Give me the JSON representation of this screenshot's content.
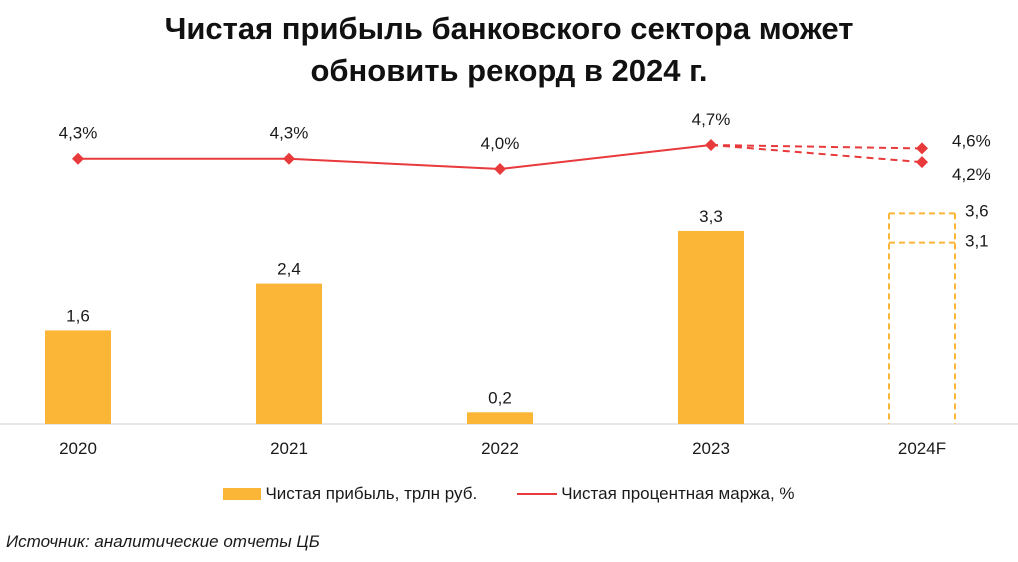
{
  "chart_data": {
    "type": "bar+line",
    "title_line1": "Чистая прибыль банковского сектора может",
    "title_line2": "обновить рекорд в 2024 г.",
    "categories": [
      "2020",
      "2021",
      "2022",
      "2023",
      "2024F"
    ],
    "series": [
      {
        "name": "Чистая прибыль, трлн руб.",
        "type": "bar",
        "values": [
          1.6,
          2.4,
          0.2,
          3.3,
          null
        ],
        "labels": [
          "1,6",
          "2,4",
          "0,2",
          "3,3",
          ""
        ],
        "forecast": {
          "low": 3.1,
          "high": 3.6,
          "low_label": "3,1",
          "high_label": "3,6"
        },
        "color": "#fbb637"
      },
      {
        "name": "Чистая процентная маржа, %",
        "type": "line",
        "values": [
          4.3,
          4.3,
          4.0,
          4.7,
          null
        ],
        "labels": [
          "4,3%",
          "4,3%",
          "4,0%",
          "4,7%",
          ""
        ],
        "forecast": {
          "high": 4.6,
          "low": 4.2,
          "high_label": "4,6%",
          "low_label": "4,2%"
        },
        "color": "#e8393b"
      }
    ],
    "bar_ylim": [
      0,
      4.4
    ],
    "line_ylim": [
      4.0,
      4.7
    ]
  },
  "legend": {
    "bar_label": "Чистая прибыль, трлн руб.",
    "line_label": "Чистая процентная маржа, %"
  },
  "source": "Источник: аналитические отчеты ЦБ"
}
